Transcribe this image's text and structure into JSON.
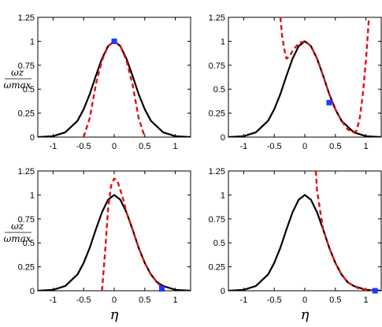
{
  "chart_data": [
    {
      "type": "line",
      "panel": "top-left",
      "xlim": [
        -1.25,
        1.25
      ],
      "ylim": [
        0,
        1.25
      ],
      "xticks": [
        "-1",
        "-0.5",
        "0",
        "0.5",
        "1"
      ],
      "yticks": [
        "0",
        "0.25",
        "0.5",
        "0.75",
        "1",
        "1.25"
      ],
      "ylabel": "ωz/ωmax",
      "xlabel": "",
      "series": [
        {
          "style": "solid",
          "color": "#000000",
          "x": [
            -1.25,
            -1.0,
            -0.8,
            -0.6,
            -0.5,
            -0.4,
            -0.3,
            -0.2,
            -0.1,
            0,
            0.1,
            0.2,
            0.3,
            0.4,
            0.5,
            0.6,
            0.8,
            1.0,
            1.25
          ],
          "y": [
            0,
            0.01,
            0.05,
            0.17,
            0.29,
            0.45,
            0.64,
            0.82,
            0.95,
            1.0,
            0.95,
            0.82,
            0.64,
            0.45,
            0.29,
            0.17,
            0.05,
            0.01,
            0
          ]
        },
        {
          "style": "dashed",
          "color": "#e01010",
          "x": [
            -0.5,
            -0.4,
            -0.3,
            -0.2,
            -0.1,
            0,
            0.1,
            0.2,
            0.3,
            0.4,
            0.5
          ],
          "y": [
            0,
            0.2,
            0.55,
            0.8,
            0.95,
            1.0,
            0.95,
            0.8,
            0.55,
            0.2,
            0
          ]
        }
      ],
      "marker": {
        "x": 0,
        "y": 1.0,
        "color": "#1a3cff"
      }
    },
    {
      "type": "line",
      "panel": "top-right",
      "xlim": [
        -1.25,
        1.25
      ],
      "ylim": [
        0,
        1.25
      ],
      "xticks": [
        "-1",
        "-0.5",
        "0",
        "0.5",
        "1"
      ],
      "yticks": [
        "0",
        "0.25",
        "0.5",
        "0.75",
        "1",
        "1.25"
      ],
      "xlabel": "",
      "series": [
        {
          "style": "solid",
          "color": "#000000",
          "x": [
            -1.25,
            -1.0,
            -0.8,
            -0.6,
            -0.5,
            -0.4,
            -0.3,
            -0.2,
            -0.1,
            0,
            0.1,
            0.2,
            0.3,
            0.4,
            0.5,
            0.6,
            0.8,
            1.0,
            1.25
          ],
          "y": [
            0,
            0.01,
            0.05,
            0.17,
            0.29,
            0.45,
            0.64,
            0.82,
            0.95,
            1.0,
            0.95,
            0.82,
            0.64,
            0.45,
            0.29,
            0.17,
            0.05,
            0.01,
            0
          ]
        },
        {
          "style": "dashed",
          "color": "#e01010",
          "x": [
            -0.4,
            -0.37,
            -0.33,
            -0.3,
            -0.25,
            -0.2,
            -0.1,
            0,
            0.1,
            0.2,
            0.3,
            0.4,
            0.5,
            0.6,
            0.7,
            0.8,
            0.85,
            0.9,
            0.95,
            1.0,
            1.05
          ],
          "y": [
            1.25,
            1.05,
            0.9,
            0.82,
            0.84,
            0.9,
            0.98,
            1.0,
            0.95,
            0.82,
            0.64,
            0.45,
            0.29,
            0.17,
            0.08,
            0.05,
            0.07,
            0.2,
            0.45,
            0.8,
            1.25
          ]
        }
      ],
      "marker": {
        "x": 0.4,
        "y": 0.36,
        "color": "#1a3cff"
      }
    },
    {
      "type": "line",
      "panel": "bottom-left",
      "xlim": [
        -1.25,
        1.25
      ],
      "ylim": [
        0,
        1.25
      ],
      "xticks": [
        "-1",
        "-0.5",
        "0",
        "0.5",
        "1"
      ],
      "yticks": [
        "0",
        "0.25",
        "0.5",
        "0.75",
        "1",
        "1.25"
      ],
      "ylabel": "ωz/ωmax",
      "xlabel": "η",
      "series": [
        {
          "style": "solid",
          "color": "#000000",
          "x": [
            -1.25,
            -1.0,
            -0.8,
            -0.6,
            -0.5,
            -0.4,
            -0.3,
            -0.2,
            -0.1,
            0,
            0.1,
            0.2,
            0.3,
            0.4,
            0.5,
            0.6,
            0.7,
            0.8,
            1.0,
            1.25
          ],
          "y": [
            0,
            0.01,
            0.05,
            0.17,
            0.29,
            0.45,
            0.64,
            0.82,
            0.95,
            1.0,
            0.95,
            0.82,
            0.64,
            0.45,
            0.29,
            0.17,
            0.09,
            0.05,
            0.01,
            0
          ]
        },
        {
          "style": "dashed",
          "color": "#e01010",
          "x": [
            -0.2,
            -0.15,
            -0.1,
            -0.05,
            0,
            0.05,
            0.1,
            0.15,
            0.2,
            0.3,
            0.4,
            0.5,
            0.6,
            0.7,
            0.8
          ],
          "y": [
            0,
            0.4,
            0.85,
            1.1,
            1.17,
            1.15,
            1.05,
            0.95,
            0.82,
            0.64,
            0.45,
            0.29,
            0.17,
            0.09,
            0.02
          ]
        }
      ],
      "marker": {
        "x": 0.78,
        "y": 0.02,
        "color": "#1a3cff"
      }
    },
    {
      "type": "line",
      "panel": "bottom-right",
      "xlim": [
        -1.25,
        1.25
      ],
      "ylim": [
        0,
        1.25
      ],
      "xticks": [
        "-1",
        "-0.5",
        "0",
        "0.5",
        "1"
      ],
      "yticks": [
        "0",
        "0.25",
        "0.5",
        "0.75",
        "1",
        "1.25"
      ],
      "xlabel": "η",
      "series": [
        {
          "style": "solid",
          "color": "#000000",
          "x": [
            -1.25,
            -1.0,
            -0.8,
            -0.6,
            -0.5,
            -0.4,
            -0.3,
            -0.2,
            -0.1,
            0,
            0.1,
            0.2,
            0.3,
            0.4,
            0.5,
            0.6,
            0.7,
            0.8,
            1.0,
            1.25
          ],
          "y": [
            0,
            0.01,
            0.05,
            0.17,
            0.29,
            0.45,
            0.64,
            0.82,
            0.95,
            1.0,
            0.95,
            0.82,
            0.64,
            0.45,
            0.29,
            0.17,
            0.09,
            0.05,
            0.01,
            0
          ]
        },
        {
          "style": "dashed",
          "color": "#e01010",
          "x": [
            0.18,
            0.2,
            0.25,
            0.3,
            0.4,
            0.5,
            0.6,
            0.7,
            0.8,
            0.9,
            1.0,
            1.1,
            1.15
          ],
          "y": [
            1.25,
            1.05,
            0.84,
            0.64,
            0.45,
            0.29,
            0.17,
            0.09,
            0.05,
            0.02,
            0.01,
            0.005,
            0.0
          ]
        }
      ],
      "marker": {
        "x": 1.15,
        "y": 0.0,
        "color": "#1a3cff"
      }
    }
  ]
}
